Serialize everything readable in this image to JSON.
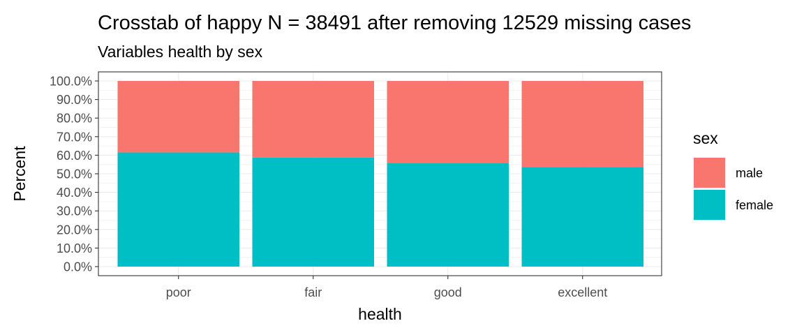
{
  "chart_data": {
    "type": "bar",
    "stacked": true,
    "title": "Crosstab of happy N = 38491 after removing 12529 missing cases",
    "subtitle": "Variables health by sex",
    "xlabel": "health",
    "ylabel": "Percent",
    "categories": [
      "poor",
      "fair",
      "good",
      "excellent"
    ],
    "ylim": [
      0,
      100
    ],
    "yticks": [
      "0.0%",
      "10.0%",
      "20.0%",
      "30.0%",
      "40.0%",
      "50.0%",
      "60.0%",
      "70.0%",
      "80.0%",
      "90.0%",
      "100.0%"
    ],
    "grid": true,
    "legend": {
      "title": "sex",
      "position": "right"
    },
    "series": [
      {
        "name": "female",
        "color": "#00BFC4",
        "values": [
          61.5,
          58.7,
          55.8,
          53.6
        ]
      },
      {
        "name": "male",
        "color": "#F8766D",
        "values": [
          38.5,
          41.3,
          44.2,
          46.4
        ]
      }
    ],
    "legend_order": [
      "male",
      "female"
    ]
  }
}
